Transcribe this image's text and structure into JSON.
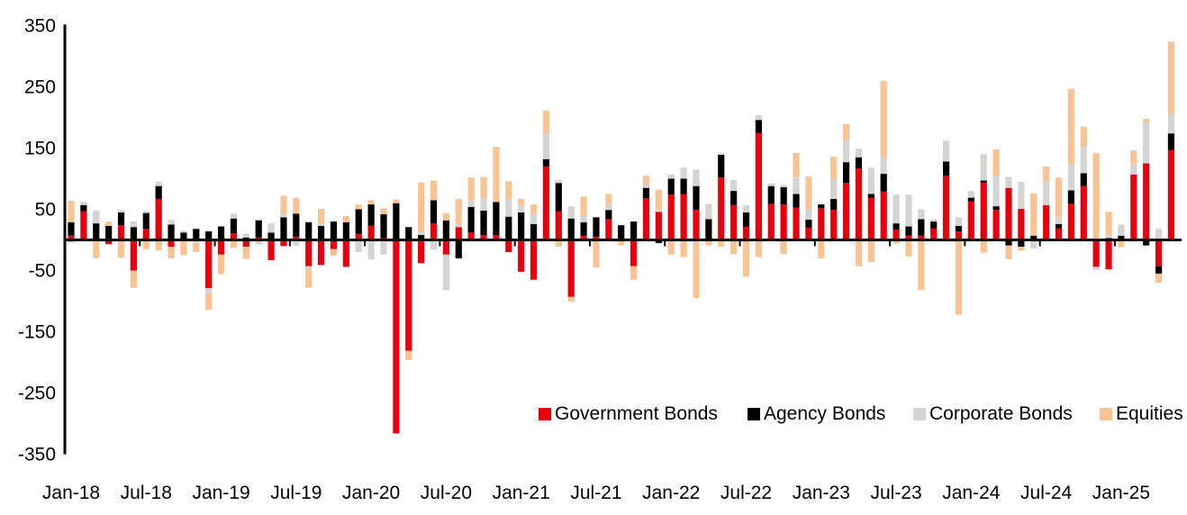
{
  "colors": {
    "government": "#E8000D",
    "agency": "#000000",
    "corporate": "#D4D4D4",
    "equities": "#FAC492",
    "axis": "#000000",
    "background": "#FFFFFF"
  },
  "legend": {
    "items": [
      {
        "label": "Government Bonds",
        "series": "government"
      },
      {
        "label": "Agency Bonds",
        "series": "agency"
      },
      {
        "label": "Corporate Bonds",
        "series": "corporate"
      },
      {
        "label": "Equities",
        "series": "equities"
      }
    ]
  },
  "chart_data": {
    "type": "bar",
    "stacked": true,
    "title": "",
    "xlabel": "",
    "ylabel": "",
    "ylim": [
      -350,
      350
    ],
    "y_ticks": [
      350,
      250,
      150,
      50,
      -50,
      -150,
      -250,
      -350
    ],
    "x_tick_labels": [
      "Jan-18",
      "Jul-18",
      "Jan-19",
      "Jul-19",
      "Jan-20",
      "Jul-20",
      "Jan-21",
      "Jul-21",
      "Jan-22",
      "Jul-22",
      "Jan-23",
      "Jul-23",
      "Jan-24",
      "Jul-24",
      "Jan-25"
    ],
    "x_tick_every": 6,
    "grid": false,
    "legend_position": "inside-bottom-right",
    "categories": [
      "Jan-18",
      "Feb-18",
      "Mar-18",
      "Apr-18",
      "May-18",
      "Jun-18",
      "Jul-18",
      "Aug-18",
      "Sep-18",
      "Oct-18",
      "Nov-18",
      "Dec-18",
      "Jan-19",
      "Feb-19",
      "Mar-19",
      "Apr-19",
      "May-19",
      "Jun-19",
      "Jul-19",
      "Aug-19",
      "Sep-19",
      "Oct-19",
      "Nov-19",
      "Dec-19",
      "Jan-20",
      "Feb-20",
      "Mar-20",
      "Apr-20",
      "May-20",
      "Jun-20",
      "Jul-20",
      "Aug-20",
      "Sep-20",
      "Oct-20",
      "Nov-20",
      "Dec-20",
      "Jan-21",
      "Feb-21",
      "Mar-21",
      "Apr-21",
      "May-21",
      "Jun-21",
      "Jul-21",
      "Aug-21",
      "Sep-21",
      "Oct-21",
      "Nov-21",
      "Dec-21",
      "Jan-22",
      "Feb-22",
      "Mar-22",
      "Apr-22",
      "May-22",
      "Jun-22",
      "Jul-22",
      "Aug-22",
      "Sep-22",
      "Oct-22",
      "Nov-22",
      "Dec-22",
      "Jan-23",
      "Feb-23",
      "Mar-23",
      "Apr-23",
      "May-23",
      "Jun-23",
      "Jul-23",
      "Aug-23",
      "Sep-23",
      "Oct-23",
      "Nov-23",
      "Dec-23",
      "Jan-24",
      "Feb-24",
      "Mar-24",
      "Apr-24",
      "May-24",
      "Jun-24",
      "Jul-24",
      "Aug-24",
      "Sep-24",
      "Oct-24",
      "Nov-24",
      "Dec-24",
      "Jan-25",
      "Feb-25",
      "Mar-25",
      "Apr-25",
      "May-25"
    ],
    "series": [
      {
        "name": "Government Bonds",
        "key": "government",
        "values": [
          7,
          47,
          0,
          -7,
          24,
          -50,
          18,
          67,
          -11,
          0,
          0,
          -79,
          -24,
          11,
          -11,
          4,
          -33,
          -10,
          5,
          -43,
          -41,
          -15,
          -44,
          10,
          23,
          3,
          -316,
          -181,
          -38,
          27,
          -24,
          21,
          12,
          8,
          8,
          -20,
          -52,
          -65,
          120,
          47,
          -93,
          7,
          5,
          34,
          0,
          -43,
          68,
          46,
          74,
          75,
          49,
          0,
          102,
          57,
          22,
          175,
          59,
          58,
          53,
          20,
          52,
          49,
          93,
          117,
          69,
          79,
          17,
          7,
          7,
          19,
          105,
          14,
          63,
          94,
          49,
          85,
          51,
          0,
          57,
          19,
          59,
          88,
          -44,
          -48,
          0,
          107,
          125,
          -43,
          147
        ]
      },
      {
        "name": "Agency Bonds",
        "key": "agency",
        "values": [
          22,
          10,
          27,
          23,
          21,
          21,
          26,
          21,
          25,
          12,
          18,
          14,
          22,
          24,
          4,
          28,
          12,
          37,
          38,
          29,
          23,
          30,
          29,
          40,
          35,
          39,
          60,
          21,
          8,
          38,
          32,
          -30,
          42,
          40,
          54,
          38,
          45,
          26,
          12,
          46,
          35,
          22,
          32,
          15,
          24,
          30,
          17,
          -5,
          26,
          25,
          39,
          34,
          37,
          23,
          23,
          21,
          29,
          28,
          22,
          13,
          6,
          18,
          34,
          18,
          6,
          29,
          10,
          15,
          27,
          11,
          23,
          9,
          6,
          3,
          6,
          -9,
          -11,
          7,
          0,
          7,
          22,
          21,
          0,
          3,
          7,
          0,
          -9,
          -12,
          27
        ]
      },
      {
        "name": "Corporate Bonds",
        "key": "corporate",
        "values": [
          -5,
          5,
          21,
          0,
          4,
          9,
          3,
          7,
          8,
          3,
          -5,
          -8,
          0,
          8,
          6,
          0,
          15,
          5,
          -9,
          -5,
          3,
          0,
          0,
          -20,
          -32,
          -24,
          0,
          0,
          6,
          -16,
          -58,
          5,
          10,
          20,
          0,
          29,
          12,
          17,
          42,
          5,
          20,
          10,
          0,
          10,
          0,
          0,
          5,
          4,
          7,
          18,
          27,
          25,
          3,
          18,
          12,
          8,
          4,
          4,
          27,
          17,
          0,
          31,
          35,
          14,
          43,
          27,
          47,
          52,
          16,
          4,
          34,
          14,
          11,
          43,
          50,
          18,
          44,
          -14,
          38,
          11,
          42,
          43,
          -5,
          5,
          18,
          17,
          67,
          18,
          32
        ]
      },
      {
        "name": "Equities",
        "key": "equities",
        "values": [
          35,
          0,
          -30,
          7,
          -29,
          -28,
          -15,
          -17,
          -19,
          -25,
          -15,
          -27,
          -32,
          -13,
          -20,
          -6,
          0,
          30,
          26,
          -30,
          25,
          -11,
          10,
          8,
          7,
          10,
          6,
          -15,
          80,
          32,
          12,
          41,
          38,
          35,
          90,
          29,
          10,
          15,
          37,
          -11,
          -8,
          32,
          -45,
          16,
          -9,
          -22,
          15,
          32,
          -24,
          -28,
          -95,
          -9,
          -11,
          -23,
          -60,
          -28,
          0,
          -23,
          40,
          54,
          -30,
          38,
          27,
          -43,
          -36,
          125,
          -6,
          -27,
          -82,
          0,
          0,
          -122,
          0,
          -21,
          43,
          -22,
          -6,
          69,
          25,
          65,
          124,
          33,
          142,
          38,
          -12,
          22,
          6,
          -15,
          118
        ]
      }
    ]
  }
}
